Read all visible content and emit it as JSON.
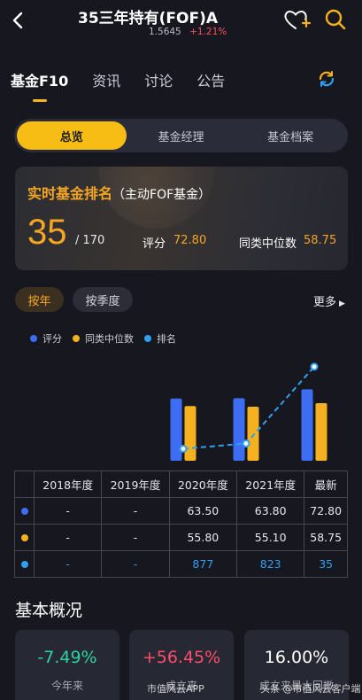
{
  "header": {
    "title": "35三年持有(FOF)A",
    "nav_value": "1.5645",
    "nav_change": "+1.21%"
  },
  "tabs": [
    {
      "label": "基金F10",
      "active": true
    },
    {
      "label": "资讯",
      "active": false
    },
    {
      "label": "讨论",
      "active": false
    },
    {
      "label": "公告",
      "active": false
    }
  ],
  "segmented": [
    {
      "label": "总览",
      "active": true
    },
    {
      "label": "基金经理",
      "active": false
    },
    {
      "label": "基金档案",
      "active": false
    }
  ],
  "ranking": {
    "title": "实时基金排名",
    "subtitle": "（主动FOF基金）",
    "rank": "35",
    "total": "/ 170",
    "score_label": "评分",
    "score_value": "72.80",
    "median_label": "同类中位数",
    "median_value": "58.75"
  },
  "period": {
    "year_label": "按年",
    "quarter_label": "按季度",
    "more_label": "更多"
  },
  "legend": [
    {
      "label": "评分",
      "color": "#3d6df2"
    },
    {
      "label": "同类中位数",
      "color": "#f5b11f"
    },
    {
      "label": "排名",
      "color": "#2f9ff0"
    }
  ],
  "chart_data": {
    "type": "bar",
    "categories": [
      "2018年度",
      "2019年度",
      "2020年度",
      "2021年度",
      "最新"
    ],
    "series": [
      {
        "name": "评分",
        "type": "bar",
        "color": "#3d6df2",
        "values": [
          null,
          null,
          63.5,
          63.8,
          72.8
        ]
      },
      {
        "name": "同类中位数",
        "type": "bar",
        "color": "#f5b11f",
        "values": [
          null,
          null,
          55.8,
          55.1,
          58.75
        ]
      },
      {
        "name": "排名",
        "type": "line",
        "color": "#2f9ff0",
        "values": [
          null,
          null,
          877,
          823,
          35
        ]
      }
    ]
  },
  "table": {
    "headers": [
      "",
      "2018年度",
      "2019年度",
      "2020年度",
      "2021年度",
      "最新"
    ],
    "rows": [
      {
        "dot": "#3d6df2",
        "cells": [
          "-",
          "-",
          "63.50",
          "63.80",
          "72.80"
        ],
        "rank": false
      },
      {
        "dot": "#f5b11f",
        "cells": [
          "-",
          "-",
          "55.80",
          "55.10",
          "58.75"
        ],
        "rank": false
      },
      {
        "dot": "#2f9ff0",
        "cells": [
          "-",
          "-",
          "877",
          "823",
          "35"
        ],
        "rank": true
      }
    ]
  },
  "overview": {
    "title": "基本概况",
    "cards": [
      {
        "value": "-7.49%",
        "label": "今年来",
        "tone": "green"
      },
      {
        "value": "+56.45%",
        "label": "成立来",
        "tone": "red"
      },
      {
        "value": "16.00%",
        "label": "成立来最大回撤",
        "tone": "white"
      }
    ]
  },
  "watermarks": {
    "left": "市值风云APP",
    "right": "头条 @市值风云客户端"
  }
}
